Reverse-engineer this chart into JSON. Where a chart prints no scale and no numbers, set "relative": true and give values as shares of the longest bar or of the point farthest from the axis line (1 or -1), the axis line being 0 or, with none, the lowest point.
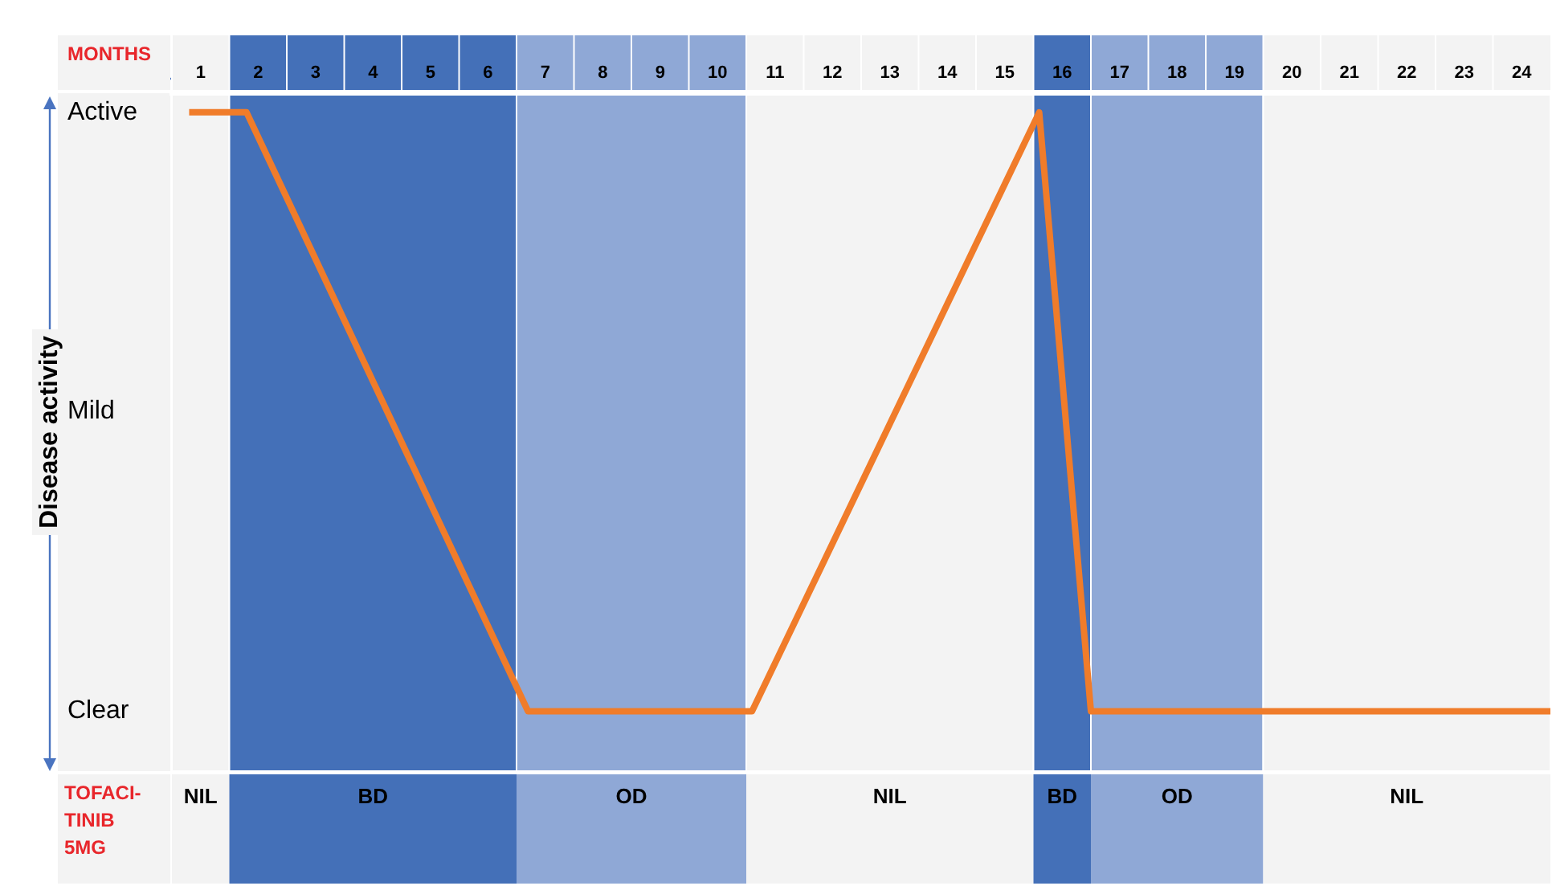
{
  "chart_data": {
    "type": "line",
    "xlabel": "MONTHS",
    "ylabel": "Disease activity",
    "x": [
      0.8,
      1.8,
      6.7,
      10.6,
      15.6,
      16.5,
      24.5
    ],
    "series": [
      {
        "color": "#f07c2a",
        "values": [
          1,
          1,
          0,
          0,
          1,
          0,
          0
        ]
      }
    ],
    "relative": true,
    "xlim": [
      0.5,
      24.5
    ],
    "xticks": [
      1,
      2,
      3,
      4,
      5,
      6,
      7,
      8,
      9,
      10,
      11,
      12,
      13,
      14,
      15,
      16,
      17,
      18,
      19,
      20,
      21,
      22,
      23,
      24
    ],
    "bands": [
      {
        "axis": "x",
        "from": 0.5,
        "to": 1.5,
        "label": "NIL",
        "color": "#f3f3f3"
      },
      {
        "axis": "x",
        "from": 1.5,
        "to": 6.5,
        "label": "BD",
        "color": "#4470b8"
      },
      {
        "axis": "x",
        "from": 6.5,
        "to": 10.5,
        "label": "OD",
        "color": "#8fa8d6"
      },
      {
        "axis": "x",
        "from": 10.5,
        "to": 15.5,
        "label": "NIL",
        "color": "#f3f3f3"
      },
      {
        "axis": "x",
        "from": 15.5,
        "to": 16.5,
        "label": "BD",
        "color": "#4470b8"
      },
      {
        "axis": "x",
        "from": 16.5,
        "to": 19.5,
        "label": "OD",
        "color": "#8fa8d6"
      },
      {
        "axis": "x",
        "from": 19.5,
        "to": 24.5,
        "label": "NIL",
        "color": "#f3f3f3"
      }
    ],
    "annotations": [
      "Active",
      "Mild",
      "Clear",
      "TOFACI-TINIB 5MG"
    ],
    "grid": false,
    "legend": false,
    "marker": "none",
    "line_style": "solid"
  }
}
